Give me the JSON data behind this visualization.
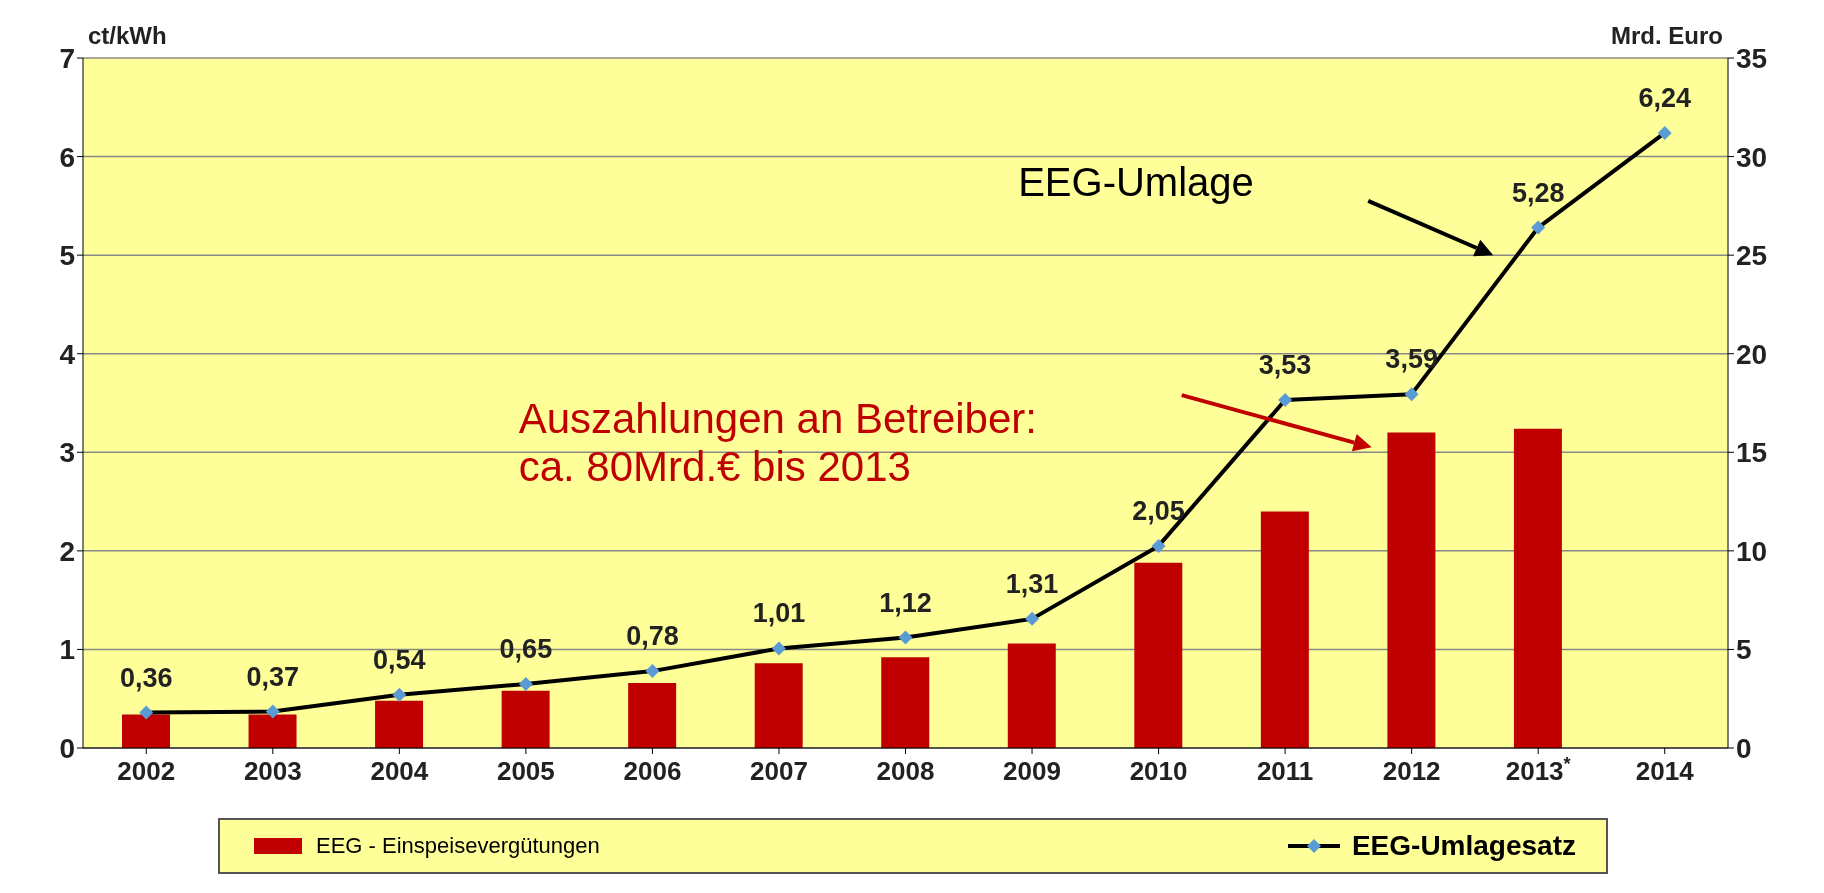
{
  "chart_data": {
    "type": "bar",
    "categories": [
      "2002",
      "2003",
      "2004",
      "2005",
      "2006",
      "2007",
      "2008",
      "2009",
      "2010",
      "2011",
      "2012",
      "2013$^{*}$",
      "2014"
    ],
    "ylabel": "ct/kWh",
    "y2label": "Mrd. Euro",
    "ylim": [
      0,
      7
    ],
    "yticks": [
      0,
      1,
      2,
      3,
      4,
      5,
      6,
      7
    ],
    "y2lim": [
      0,
      35
    ],
    "y2ticks": [
      0,
      5,
      10,
      15,
      20,
      25,
      30,
      35
    ],
    "series": [
      {
        "name": "EEG - Einspeisevergütungen",
        "axis": "y2",
        "color": "#c00000",
        "values": [
          1.7,
          1.7,
          2.4,
          2.9,
          3.3,
          4.3,
          4.6,
          5.3,
          9.4,
          12.0,
          16.0,
          16.2,
          null
        ]
      },
      {
        "name": "EEG-Umlagesatz",
        "type": "line",
        "color": "#000000",
        "marker": "diamond",
        "values": [
          0.36,
          0.37,
          0.54,
          0.65,
          0.78,
          1.01,
          1.12,
          1.31,
          2.05,
          3.53,
          3.59,
          5.28,
          6.24
        ],
        "value_labels": [
          "0,36",
          "0,37",
          "0,54",
          "0,65",
          "0,78",
          "1,01",
          "1,12",
          "1,31",
          "2,05",
          "3,53",
          "3,59",
          "5,28",
          "6,24"
        ]
      }
    ],
    "annotations": [
      "EEG-Umlage",
      "Auszahlungen an Betreiber:\nca. 80Mrd.€ bis 2013"
    ],
    "grid": "y",
    "legend": "bottom"
  }
}
